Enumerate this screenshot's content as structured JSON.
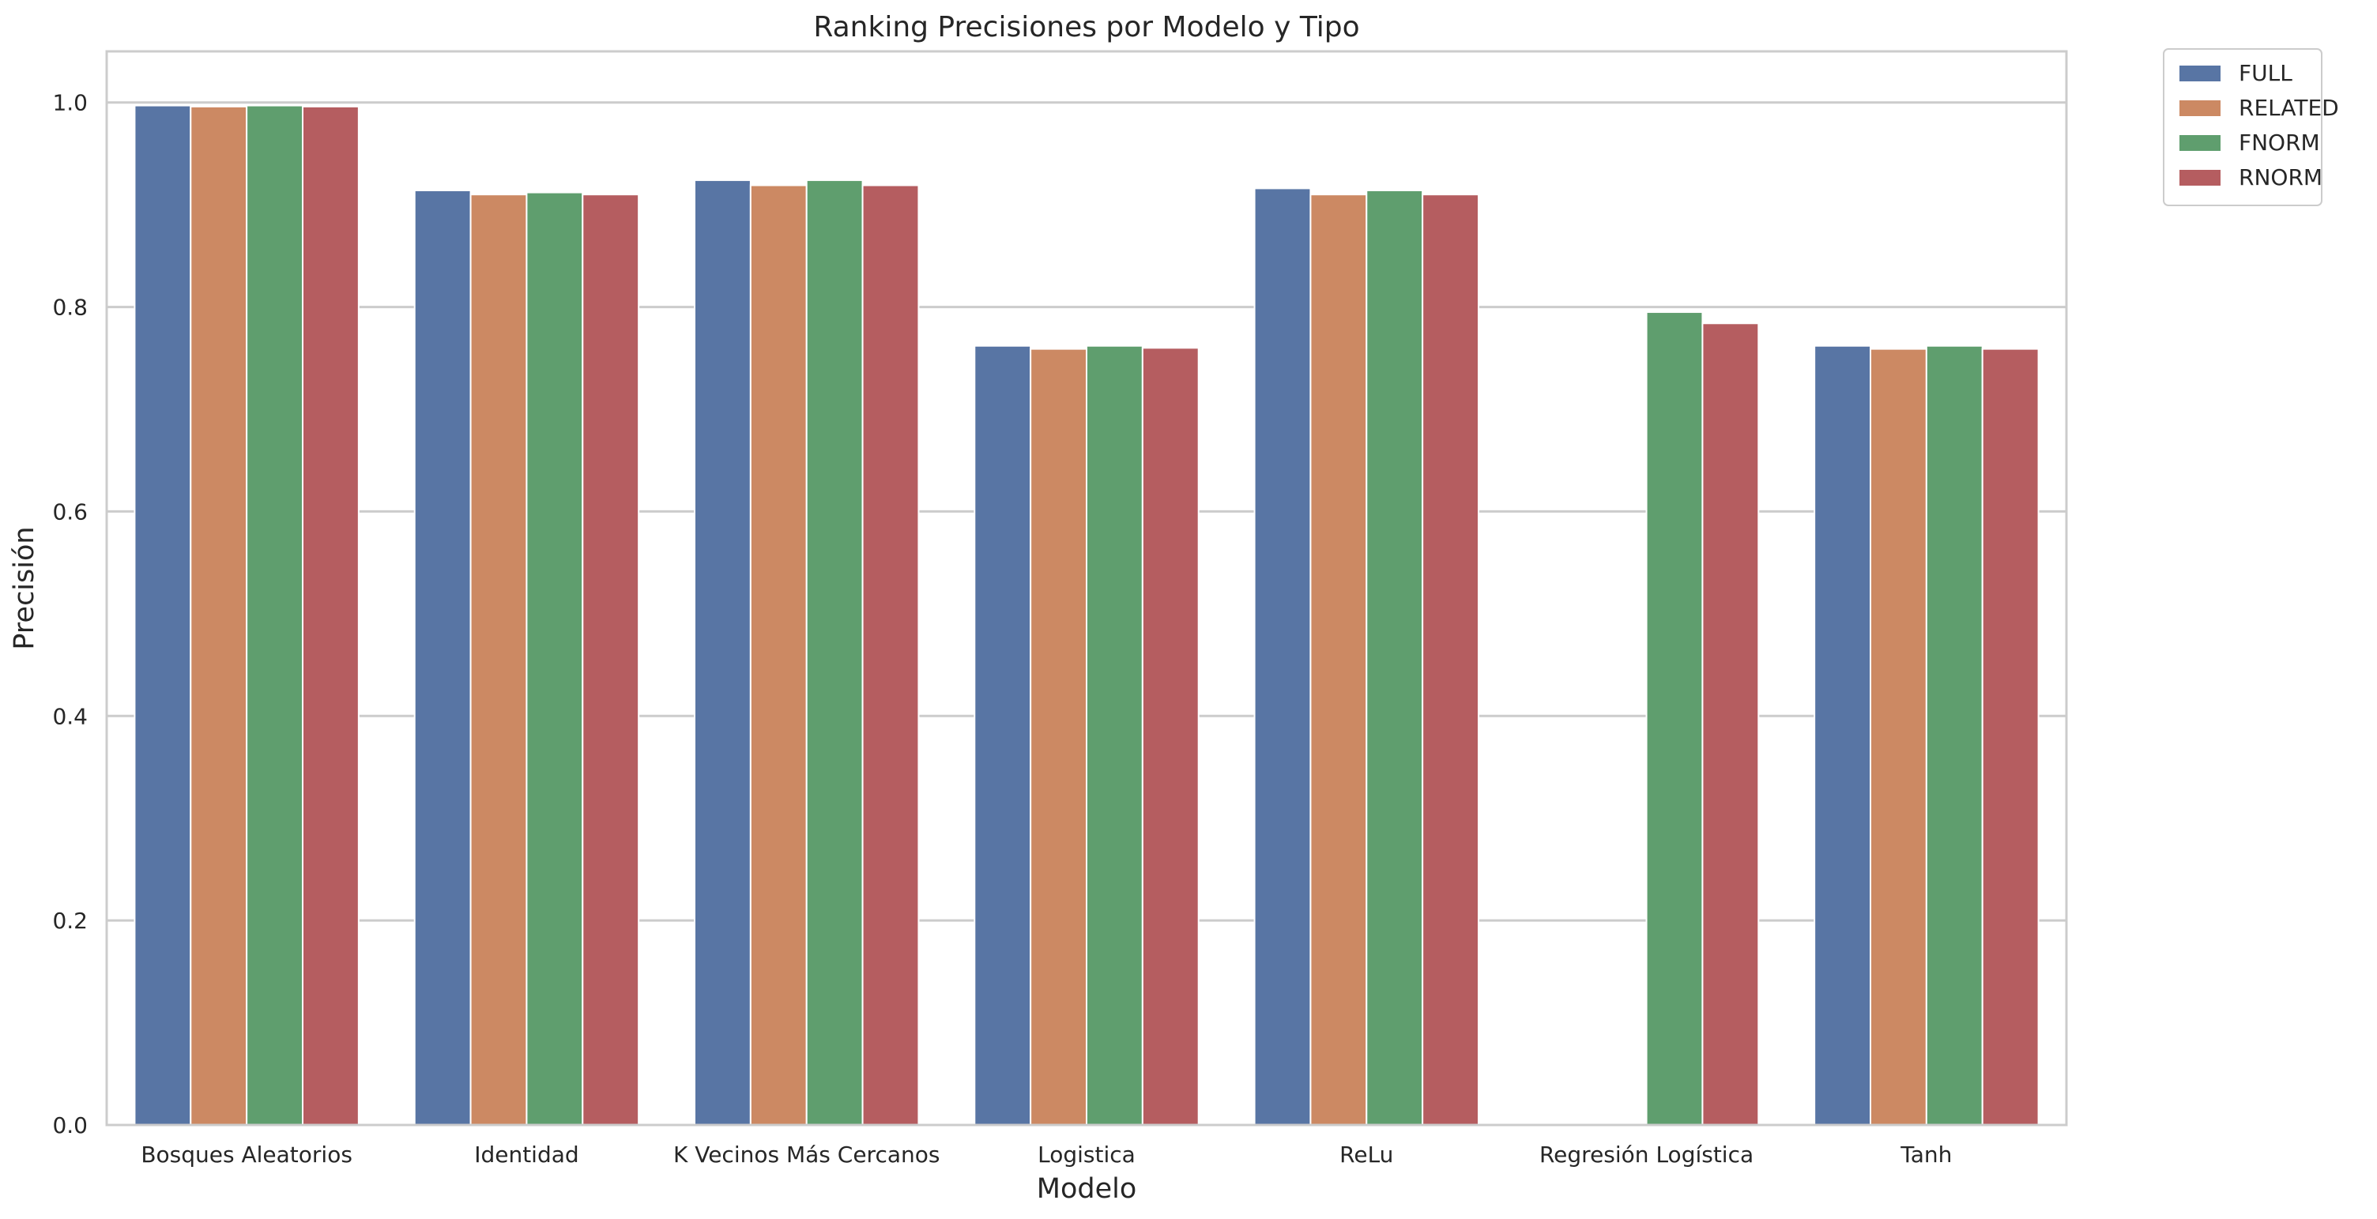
{
  "chart_data": {
    "type": "bar",
    "title": "Ranking Precisiones por Modelo y Tipo",
    "xlabel": "Modelo",
    "ylabel": "Precisión",
    "ylim": [
      0,
      1.05
    ],
    "yticks": [
      "0.0",
      "0.2",
      "0.4",
      "0.6",
      "0.8",
      "1.0"
    ],
    "grid": "horizontal",
    "legend_position": "outside-top-right",
    "categories": [
      "Bosques Aleatorios",
      "Identidad",
      "K Vecinos Más Cercanos",
      "Logistica",
      "ReLu",
      "Regresión Logística",
      "Tanh"
    ],
    "series": [
      {
        "name": "FULL",
        "color": "#5875a4",
        "values": [
          0.997,
          0.914,
          0.924,
          0.762,
          0.916,
          null,
          0.762
        ]
      },
      {
        "name": "RELATED",
        "color": "#cc8963",
        "values": [
          0.996,
          0.91,
          0.919,
          0.759,
          0.91,
          null,
          0.759
        ]
      },
      {
        "name": "FNORM",
        "color": "#5f9e6e",
        "values": [
          0.997,
          0.912,
          0.924,
          0.762,
          0.914,
          0.795,
          0.762
        ]
      },
      {
        "name": "RNORM",
        "color": "#b55d60",
        "values": [
          0.996,
          0.91,
          0.919,
          0.76,
          0.91,
          0.784,
          0.759
        ]
      }
    ]
  }
}
